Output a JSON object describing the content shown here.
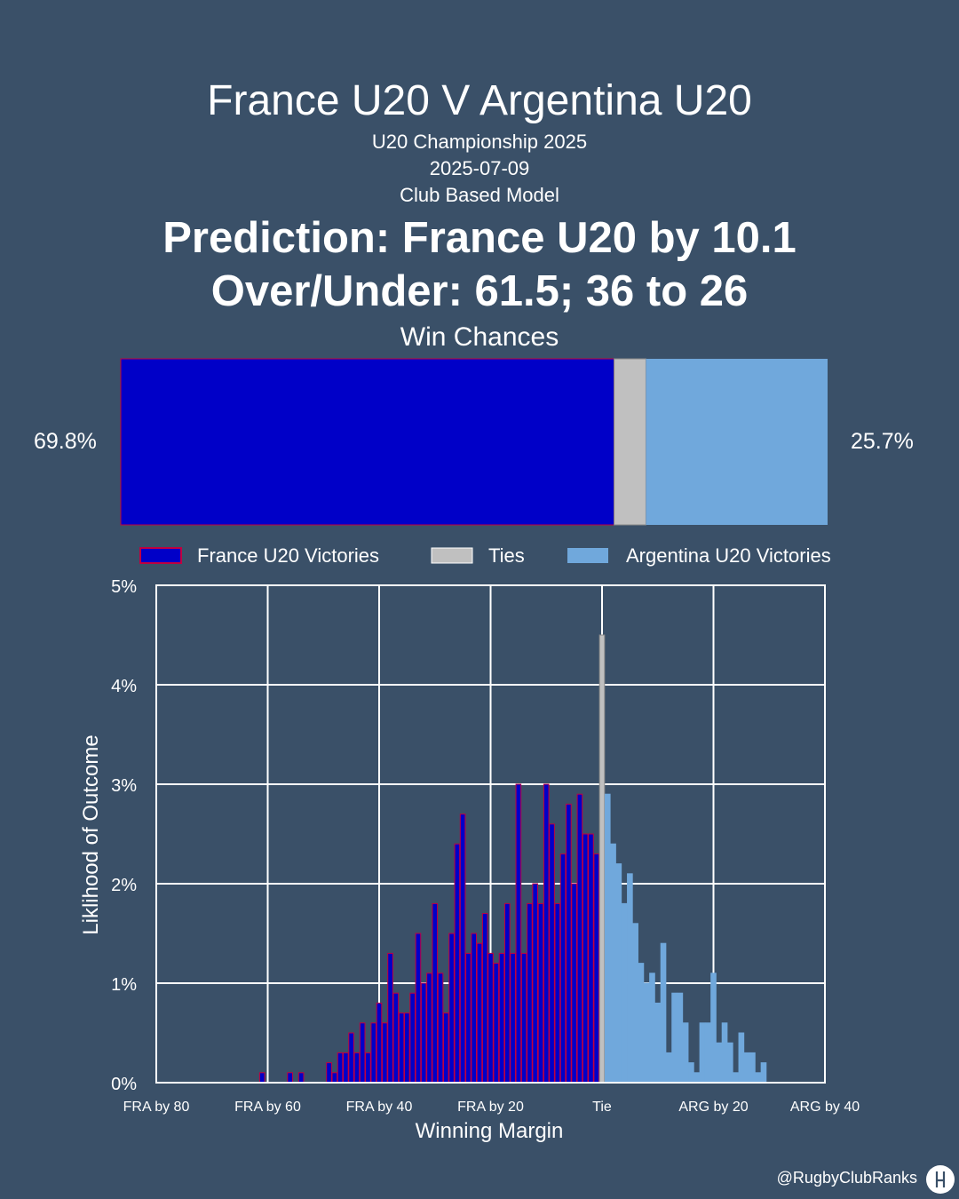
{
  "header": {
    "title": "France U20 V Argentina U20",
    "competition": "U20 Championship 2025",
    "date": "2025-07-09",
    "model": "Club Based Model",
    "prediction": "Prediction: France U20 by 10.1",
    "over_under": "Over/Under: 61.5; 36 to 26"
  },
  "win_chances": {
    "title": "Win Chances",
    "france_label": "69.8%",
    "argentina_label": "25.7%",
    "france": 69.8,
    "tie": 4.5,
    "argentina": 25.7
  },
  "legend": {
    "france": "France U20 Victories",
    "ties": "Ties",
    "argentina": "Argentina U20 Victories"
  },
  "colors": {
    "background": "#3a5068",
    "france": "#0000c8",
    "france_edge": "#c00040",
    "tie": "#c0c0c0",
    "argentina": "#70a8dc"
  },
  "chart_data": {
    "type": "bar",
    "xlabel": "Winning Margin",
    "ylabel": "Liklihood of Outcome",
    "xlim": [
      -80,
      40
    ],
    "ylim": [
      0,
      5
    ],
    "xticks": [
      {
        "value": -80,
        "label": "FRA by 80"
      },
      {
        "value": -60,
        "label": "FRA by 60"
      },
      {
        "value": -40,
        "label": "FRA by 40"
      },
      {
        "value": -20,
        "label": "FRA by 20"
      },
      {
        "value": 0,
        "label": "Tie"
      },
      {
        "value": 20,
        "label": "ARG by 20"
      },
      {
        "value": 40,
        "label": "ARG by 40"
      }
    ],
    "yticks": [
      {
        "value": 0,
        "label": "0%"
      },
      {
        "value": 1,
        "label": "1%"
      },
      {
        "value": 2,
        "label": "2%"
      },
      {
        "value": 3,
        "label": "3%"
      },
      {
        "value": 4,
        "label": "4%"
      },
      {
        "value": 5,
        "label": "5%"
      }
    ],
    "grid": true,
    "series": [
      {
        "name": "France U20 Victories",
        "margins": [
          -61,
          -56,
          -54,
          -49,
          -48,
          -47,
          -46,
          -45,
          -44,
          -43,
          -42,
          -41,
          -40,
          -39,
          -38,
          -37,
          -36,
          -35,
          -34,
          -33,
          -32,
          -31,
          -30,
          -29,
          -28,
          -27,
          -26,
          -25,
          -24,
          -23,
          -22,
          -21,
          -20,
          -19,
          -18,
          -17,
          -16,
          -15,
          -14,
          -13,
          -12,
          -11,
          -10,
          -9,
          -8,
          -7,
          -6,
          -5,
          -4,
          -3,
          -2,
          -1
        ],
        "values": [
          0.1,
          0.1,
          0.1,
          0.2,
          0.1,
          0.3,
          0.3,
          0.5,
          0.3,
          0.6,
          0.3,
          0.6,
          0.8,
          0.6,
          1.3,
          0.9,
          0.7,
          0.7,
          0.9,
          1.5,
          1.0,
          1.1,
          1.8,
          1.1,
          0.7,
          1.5,
          2.4,
          2.7,
          1.3,
          1.5,
          1.4,
          1.7,
          1.3,
          1.2,
          1.3,
          1.8,
          1.3,
          3.0,
          1.3,
          1.8,
          2.0,
          1.8,
          3.0,
          2.6,
          1.8,
          2.3,
          2.8,
          2.0,
          2.9,
          2.5,
          2.5,
          2.3
        ]
      },
      {
        "name": "Ties",
        "margins": [
          0
        ],
        "values": [
          4.5
        ]
      },
      {
        "name": "Argentina U20 Victories",
        "margins": [
          1,
          2,
          3,
          4,
          5,
          6,
          7,
          8,
          9,
          10,
          11,
          12,
          13,
          14,
          15,
          16,
          17,
          18,
          19,
          20,
          21,
          22,
          23,
          24,
          25,
          26,
          27,
          28,
          29
        ],
        "values": [
          2.9,
          2.4,
          2.2,
          1.8,
          2.1,
          1.6,
          1.2,
          1.0,
          1.1,
          0.8,
          1.4,
          0.3,
          0.9,
          0.9,
          0.6,
          0.2,
          0.1,
          0.6,
          0.6,
          1.1,
          0.4,
          0.6,
          0.4,
          0.1,
          0.5,
          0.3,
          0.3,
          0.1,
          0.2
        ]
      }
    ]
  },
  "credit": "@RugbyClubRanks"
}
